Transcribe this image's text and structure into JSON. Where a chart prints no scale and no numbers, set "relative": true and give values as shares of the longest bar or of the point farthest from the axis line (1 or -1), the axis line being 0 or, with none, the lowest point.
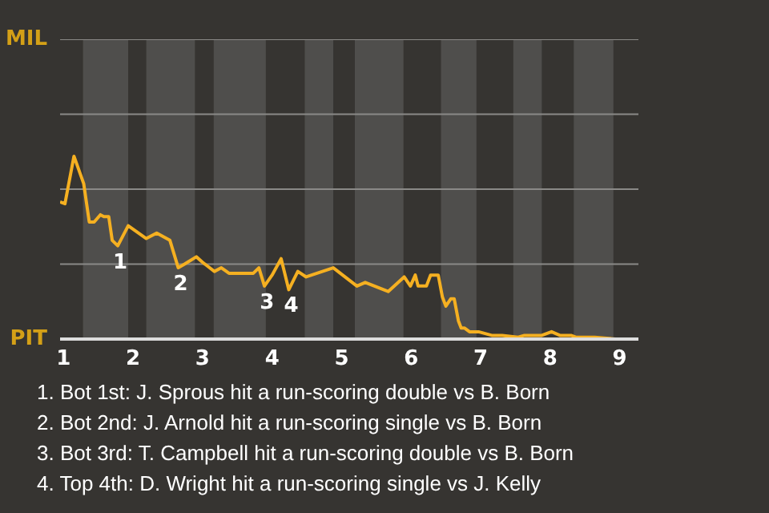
{
  "chart_data": {
    "type": "line",
    "relative": true,
    "x": [
      0.95,
      1.02,
      1.15,
      1.29,
      1.37,
      1.44,
      1.53,
      1.58,
      1.65,
      1.7,
      1.78,
      1.93,
      2.19,
      2.34,
      2.53,
      2.65,
      2.74,
      2.91,
      3.0,
      3.17,
      3.27,
      3.38,
      3.73,
      3.81,
      3.89,
      4.0,
      4.13,
      4.24,
      4.37,
      4.49,
      4.88,
      5.22,
      5.34,
      5.67,
      5.9,
      5.99,
      6.06,
      6.1,
      6.22,
      6.28,
      6.39,
      6.45,
      6.5,
      6.57,
      6.62,
      6.68,
      6.72,
      6.77,
      6.84,
      6.93,
      6.97,
      7.16,
      7.31,
      7.54,
      7.63,
      7.88,
      8.02,
      8.14,
      8.3,
      8.37,
      8.64,
      8.94,
      9.09,
      9.27
    ],
    "series": [
      {
        "color": "#f5b021",
        "values": [
          0.75,
          0.74,
          1,
          0.85,
          0.64,
          0.64,
          0.68,
          0.67,
          0.67,
          0.54,
          0.51,
          0.62,
          0.55,
          0.58,
          0.54,
          0.39,
          0.41,
          0.45,
          0.42,
          0.37,
          0.39,
          0.36,
          0.36,
          0.39,
          0.29,
          0.35,
          0.44,
          0.27,
          0.37,
          0.34,
          0.39,
          0.29,
          0.31,
          0.26,
          0.34,
          0.29,
          0.35,
          0.29,
          0.29,
          0.35,
          0.35,
          0.23,
          0.18,
          0.22,
          0.22,
          0.1,
          0.06,
          0.06,
          0.04,
          0.04,
          0.04,
          0.02,
          0.02,
          0.01,
          0.02,
          0.02,
          0.04,
          0.02,
          0.02,
          0.01,
          0.01,
          0,
          0,
          0
        ]
      }
    ],
    "xlim": [
      0.95,
      9.27
    ],
    "xticks": [
      1,
      2,
      3,
      4,
      5,
      6,
      7,
      8,
      9
    ],
    "ref_lines": [
      {
        "axis": "y",
        "value": 0.41,
        "color": "#8a8987"
      },
      {
        "axis": "y",
        "value": 0.82,
        "color": "#8a8987"
      },
      {
        "axis": "y",
        "value": 1.23,
        "color": "#8a8987"
      },
      {
        "axis": "y",
        "value": 1.64,
        "color": "#8a8987"
      }
    ],
    "bands": [
      {
        "axis": "x",
        "from": 1.28,
        "to": 1.93,
        "color": "#4f4e4c"
      },
      {
        "axis": "x",
        "from": 2.19,
        "to": 2.89,
        "color": "#4f4e4c"
      },
      {
        "axis": "x",
        "from": 3.16,
        "to": 3.91,
        "color": "#4f4e4c"
      },
      {
        "axis": "x",
        "from": 4.47,
        "to": 4.88,
        "color": "#4f4e4c"
      },
      {
        "axis": "x",
        "from": 5.19,
        "to": 5.89,
        "color": "#4f4e4c"
      },
      {
        "axis": "x",
        "from": 6.43,
        "to": 6.94,
        "color": "#4f4e4c"
      },
      {
        "axis": "x",
        "from": 7.47,
        "to": 7.88,
        "color": "#4f4e4c"
      },
      {
        "axis": "x",
        "from": 8.34,
        "to": 8.91,
        "color": "#4f4e4c"
      }
    ],
    "annotations": [
      "MIL",
      "PIT",
      {
        "text": "1",
        "x": 1.78,
        "y": 0.51
      },
      {
        "text": "2",
        "x": 2.65,
        "y": 0.39
      },
      {
        "text": "3",
        "x": 3.89,
        "y": 0.29
      },
      {
        "text": "4",
        "x": 4.24,
        "y": 0.27
      },
      "1. Bot 1st: J. Sprous hit a run-scoring double vs B. Born",
      "2. Bot 2nd: J. Arnold hit a run-scoring single vs B. Born",
      "3. Bot 3rd: T. Campbell hit a run-scoring double vs B. Born",
      "4. Top 4th: D. Wright hit a run-scoring single vs J. Kelly"
    ]
  }
}
